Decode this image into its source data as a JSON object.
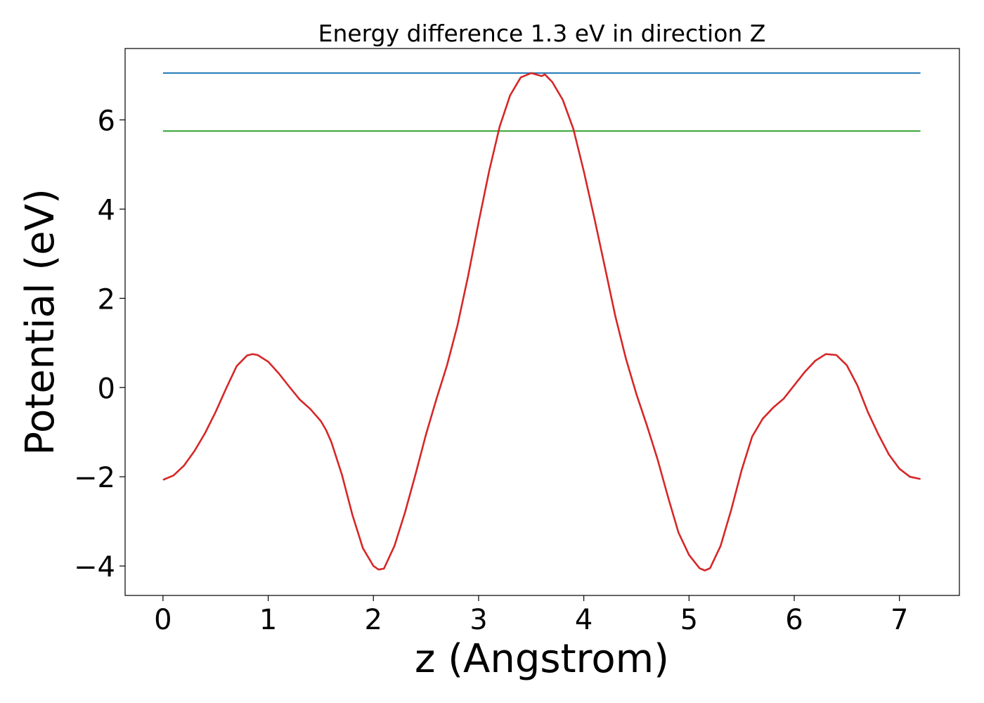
{
  "chart_data": {
    "type": "line",
    "title": "Energy difference 1.3 eV in direction Z",
    "xlabel": "z (Angstrom)",
    "ylabel": "Potential (eV)",
    "xlim": [
      -0.36,
      7.57
    ],
    "ylim": [
      -4.66,
      7.6
    ],
    "xticks": [
      0,
      1,
      2,
      3,
      4,
      5,
      6,
      7
    ],
    "xtick_labels": [
      "0",
      "1",
      "2",
      "3",
      "4",
      "5",
      "6",
      "7"
    ],
    "yticks": [
      -4,
      -2,
      0,
      2,
      4,
      6
    ],
    "ytick_labels": [
      "−4",
      "−2",
      "0",
      "2",
      "4",
      "6"
    ],
    "grid": false,
    "colors": {
      "potential": "#d62728",
      "max_level": "#1f77b4",
      "level_2": "#2ca02c"
    },
    "series": [
      {
        "key": "potential",
        "x": [
          0.0,
          0.1,
          0.2,
          0.3,
          0.4,
          0.5,
          0.6,
          0.7,
          0.8,
          0.85,
          0.9,
          1.0,
          1.1,
          1.2,
          1.3,
          1.4,
          1.5,
          1.55,
          1.6,
          1.7,
          1.8,
          1.9,
          2.0,
          2.05,
          2.1,
          2.2,
          2.3,
          2.4,
          2.5,
          2.6,
          2.7,
          2.8,
          2.9,
          3.0,
          3.1,
          3.2,
          3.3,
          3.4,
          3.5,
          3.6,
          3.63,
          3.7,
          3.8,
          3.9,
          4.0,
          4.1,
          4.2,
          4.3,
          4.4,
          4.5,
          4.6,
          4.7,
          4.8,
          4.9,
          5.0,
          5.1,
          5.15,
          5.2,
          5.3,
          5.4,
          5.5,
          5.6,
          5.7,
          5.8,
          5.9,
          6.0,
          6.1,
          6.2,
          6.3,
          6.4,
          6.5,
          6.6,
          6.7,
          6.8,
          6.9,
          7.0,
          7.1,
          7.2
        ],
        "values": [
          -2.07,
          -1.97,
          -1.75,
          -1.42,
          -1.02,
          -0.55,
          -0.02,
          0.48,
          0.72,
          0.75,
          0.73,
          0.58,
          0.32,
          0.02,
          -0.27,
          -0.48,
          -0.75,
          -0.95,
          -1.22,
          -1.95,
          -2.85,
          -3.6,
          -4.0,
          -4.08,
          -4.06,
          -3.55,
          -2.8,
          -1.95,
          -1.05,
          -0.25,
          0.5,
          1.4,
          2.5,
          3.7,
          4.85,
          5.85,
          6.55,
          6.95,
          7.05,
          6.98,
          7.02,
          6.85,
          6.45,
          5.8,
          4.85,
          3.8,
          2.7,
          1.6,
          0.65,
          -0.15,
          -0.85,
          -1.6,
          -2.45,
          -3.25,
          -3.75,
          -4.05,
          -4.1,
          -4.05,
          -3.55,
          -2.75,
          -1.85,
          -1.1,
          -0.7,
          -0.45,
          -0.25,
          0.05,
          0.35,
          0.6,
          0.75,
          0.73,
          0.5,
          0.05,
          -0.55,
          -1.05,
          -1.5,
          -1.82,
          -2.0,
          -2.05
        ]
      },
      {
        "key": "max_level",
        "x": [
          0.0,
          7.2
        ],
        "values": [
          7.05,
          7.05
        ]
      },
      {
        "key": "level_2",
        "x": [
          0.0,
          7.2
        ],
        "values": [
          5.75,
          5.75
        ]
      }
    ]
  }
}
